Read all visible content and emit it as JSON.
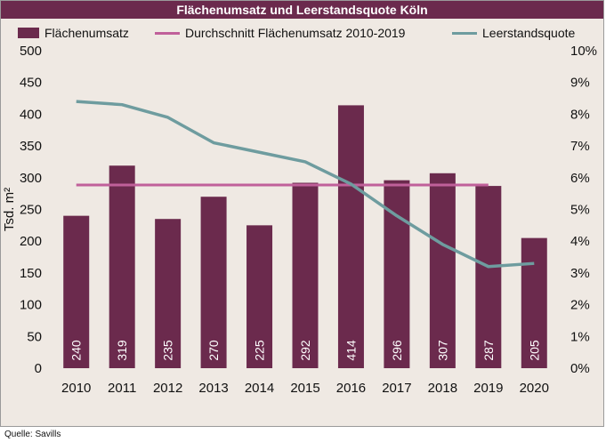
{
  "source": "Quelle: Savills",
  "chart_data": {
    "type": "bar",
    "title": "Flächenumsatz und Leerstandsquote Köln",
    "categories": [
      "2010",
      "2011",
      "2012",
      "2013",
      "2014",
      "2015",
      "2016",
      "2017",
      "2018",
      "2019",
      "2020"
    ],
    "ylabel": "Tsd. m²",
    "ylim": [
      0,
      500
    ],
    "y_ticks": [
      "0",
      "50",
      "100",
      "150",
      "200",
      "250",
      "300",
      "350",
      "400",
      "450",
      "500"
    ],
    "y2lim": [
      0,
      10
    ],
    "y2_ticks": [
      "0%",
      "1%",
      "2%",
      "3%",
      "4%",
      "5%",
      "6%",
      "7%",
      "8%",
      "9%",
      "10%"
    ],
    "legend_position": "top",
    "grid": false,
    "series": [
      {
        "name": "Flächenumsatz",
        "kind": "bar",
        "color": "#6b2a4d",
        "values": [
          240,
          319,
          235,
          270,
          225,
          292,
          414,
          296,
          307,
          287,
          205
        ],
        "labels": [
          "240",
          "319",
          "235",
          "270",
          "225",
          "292",
          "414",
          "296",
          "307",
          "287",
          "205"
        ]
      },
      {
        "name": "Durchschnitt Flächenumsatz 2010-2019",
        "kind": "line",
        "color": "#c0609a",
        "x_range": [
          "2010",
          "2019"
        ],
        "value": 288.5
      },
      {
        "name": "Leerstandsquote",
        "kind": "line",
        "axis": "secondary",
        "color": "#6e9c9f",
        "values": [
          8.4,
          8.3,
          7.9,
          7.1,
          6.8,
          6.5,
          5.8,
          4.8,
          3.9,
          3.2,
          3.3
        ]
      }
    ]
  }
}
